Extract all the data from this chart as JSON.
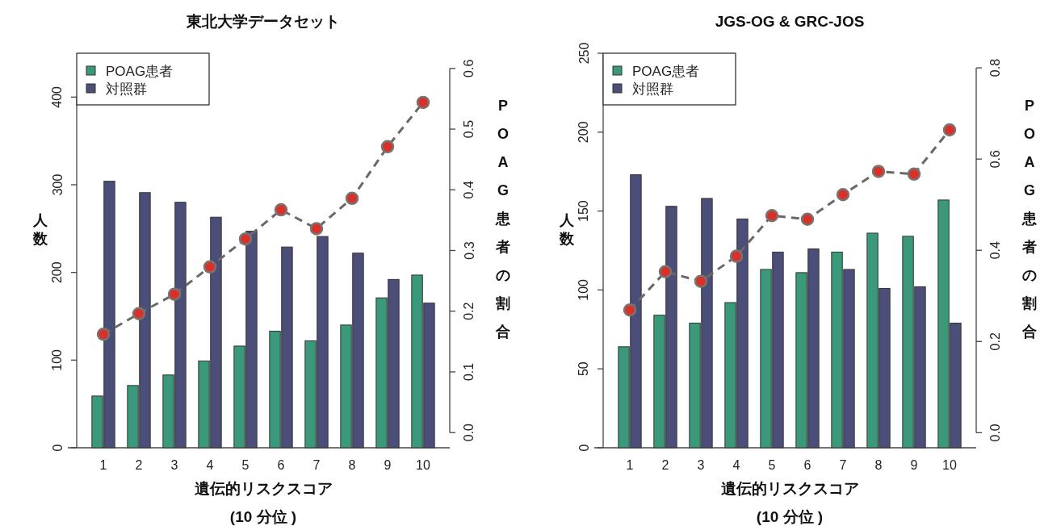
{
  "chart_data": [
    {
      "type": "bar",
      "title": "東北大学データセット",
      "xlabel": "遺伝的リスクスコア\n(10 分位 )",
      "ylabel": "人数",
      "y2label": "POAG患者の割合",
      "categories": [
        "1",
        "2",
        "3",
        "4",
        "5",
        "6",
        "7",
        "8",
        "9",
        "10"
      ],
      "series": [
        {
          "name": "POAG患者",
          "color": "#3a997a",
          "values": [
            59,
            71,
            83,
            99,
            116,
            133,
            122,
            140,
            171,
            197
          ]
        },
        {
          "name": "対照群",
          "color": "#4a4e78",
          "values": [
            304,
            291,
            280,
            263,
            247,
            229,
            241,
            222,
            192,
            165
          ]
        },
        {
          "type": "line",
          "axis": "y2",
          "color": "#d9302a",
          "values": [
            0.162,
            0.196,
            0.228,
            0.273,
            0.319,
            0.367,
            0.336,
            0.386,
            0.471,
            0.544
          ]
        }
      ],
      "ylim": [
        0,
        450
      ],
      "yticks": [
        0,
        100,
        200,
        300,
        400
      ],
      "y2lim": [
        -0.025,
        0.625
      ],
      "y2ticks": [
        {
          "value": 0,
          "label": "0.0"
        },
        0.1,
        0.2,
        0.3,
        0.4,
        0.5,
        0.6
      ],
      "legend": "top left",
      "marker": "circle",
      "line_style": "dashed"
    },
    {
      "type": "bar",
      "title": "JGS-OG & GRC-JOS",
      "xlabel": "遺伝的リスクスコア\n(10 分位 )",
      "ylabel": "人数",
      "y2label": "POAG患者の割合",
      "categories": [
        "1",
        "2",
        "3",
        "4",
        "5",
        "6",
        "7",
        "8",
        "9",
        "10"
      ],
      "series": [
        {
          "name": "POAG患者",
          "color": "#3a997a",
          "values": [
            64,
            84,
            79,
            92,
            113,
            111,
            124,
            136,
            134,
            157
          ]
        },
        {
          "name": "対照群",
          "color": "#4a4e78",
          "values": [
            173,
            153,
            158,
            145,
            124,
            126,
            113,
            101,
            102,
            79
          ]
        },
        {
          "type": "line",
          "axis": "y2",
          "color": "#d9302a",
          "values": [
            0.269,
            0.353,
            0.332,
            0.387,
            0.476,
            0.468,
            0.522,
            0.573,
            0.567,
            0.664
          ]
        }
      ],
      "ylim": [
        0,
        250
      ],
      "yticks": [
        0,
        50,
        100,
        150,
        200,
        250
      ],
      "y2lim": [
        -0.033,
        0.832
      ],
      "y2ticks": [
        {
          "value": 0,
          "label": "0.0"
        },
        0.2,
        0.4,
        0.6,
        0.8
      ],
      "legend": "top left",
      "marker": "circle",
      "line_style": "dashed"
    }
  ]
}
